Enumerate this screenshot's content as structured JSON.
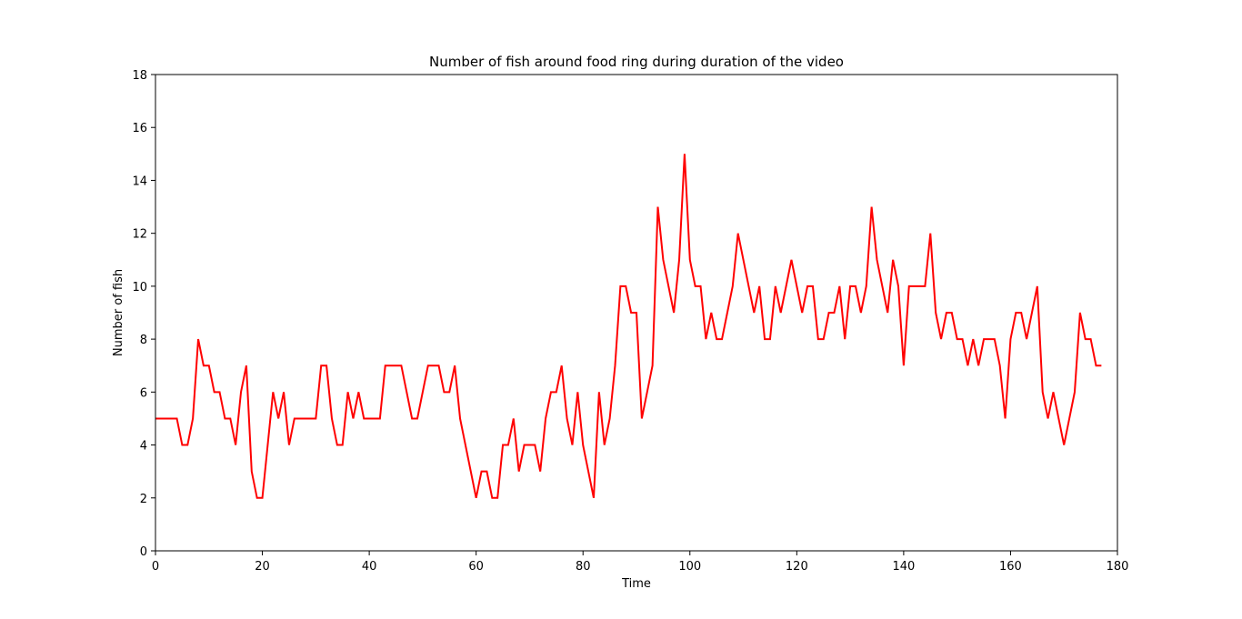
{
  "chart_data": {
    "type": "line",
    "title": "Number of fish around food ring during duration of the video",
    "xlabel": "Time",
    "ylabel": "Number of fish",
    "xlim": [
      0,
      180
    ],
    "ylim": [
      0,
      18
    ],
    "xticks": [
      0,
      20,
      40,
      60,
      80,
      100,
      120,
      140,
      160,
      180
    ],
    "yticks": [
      0,
      2,
      4,
      6,
      8,
      10,
      12,
      14,
      16,
      18
    ],
    "grid": false,
    "line_color": "#ff0000",
    "series": [
      {
        "x": [
          0,
          1,
          2,
          3,
          4,
          5,
          6,
          7,
          8,
          9,
          10,
          11,
          12,
          13,
          14,
          15,
          16,
          17,
          18,
          19,
          20,
          21,
          22,
          23,
          24,
          25,
          26,
          27,
          28,
          29,
          30,
          31,
          32,
          33,
          34,
          35,
          36,
          37,
          38,
          39,
          40,
          41,
          42,
          43,
          44,
          45,
          46,
          47,
          48,
          49,
          50,
          51,
          52,
          53,
          54,
          55,
          56,
          57,
          58,
          59,
          60,
          61,
          62,
          63,
          64,
          65,
          66,
          67,
          68,
          69,
          70,
          71,
          72,
          73,
          74,
          75,
          76,
          77,
          78,
          79,
          80,
          81,
          82,
          83,
          84,
          85,
          86,
          87,
          88,
          89,
          90,
          91,
          92,
          93,
          94,
          95,
          96,
          97,
          98,
          99,
          100,
          101,
          102,
          103,
          104,
          105,
          106,
          107,
          108,
          109,
          110,
          111,
          112,
          113,
          114,
          115,
          116,
          117,
          118,
          119,
          120,
          121,
          122,
          123,
          124,
          125,
          126,
          127,
          128,
          129,
          130,
          131,
          132,
          133,
          134,
          135,
          136,
          137,
          138,
          139,
          140,
          141,
          142,
          143,
          144,
          145,
          146,
          147,
          148,
          149,
          150,
          151,
          152,
          153,
          154,
          155,
          156,
          157,
          158,
          159,
          160,
          161,
          162,
          163,
          164,
          165,
          166,
          167,
          168,
          169,
          170,
          171,
          172,
          173,
          174,
          175,
          176,
          177
        ],
        "y": [
          5,
          5,
          5,
          5,
          5,
          4,
          4,
          5,
          8,
          7,
          7,
          6,
          6,
          5,
          5,
          4,
          6,
          7,
          3,
          2,
          2,
          4,
          6,
          5,
          6,
          4,
          5,
          5,
          5,
          5,
          5,
          7,
          7,
          5,
          4,
          4,
          6,
          5,
          6,
          5,
          5,
          5,
          5,
          7,
          7,
          7,
          7,
          6,
          5,
          5,
          6,
          7,
          7,
          7,
          6,
          6,
          7,
          5,
          4,
          3,
          2,
          3,
          3,
          2,
          2,
          4,
          4,
          5,
          3,
          4,
          4,
          4,
          3,
          5,
          6,
          6,
          7,
          5,
          4,
          6,
          4,
          3,
          2,
          6,
          4,
          5,
          7,
          10,
          10,
          9,
          9,
          5,
          6,
          7,
          13,
          11,
          10,
          9,
          11,
          15,
          11,
          10,
          10,
          8,
          9,
          8,
          8,
          9,
          10,
          12,
          11,
          10,
          9,
          10,
          8,
          8,
          10,
          9,
          10,
          11,
          10,
          9,
          10,
          10,
          8,
          8,
          9,
          9,
          10,
          8,
          10,
          10,
          9,
          10,
          13,
          11,
          10,
          9,
          11,
          10,
          7,
          10,
          10,
          10,
          10,
          12,
          9,
          8,
          9,
          9,
          8,
          8,
          7,
          8,
          7,
          8,
          8,
          8,
          7,
          5,
          8,
          9,
          9,
          8,
          9,
          10,
          6,
          5,
          6,
          5,
          4,
          5,
          6,
          9,
          8,
          8,
          7,
          7
        ]
      }
    ]
  }
}
